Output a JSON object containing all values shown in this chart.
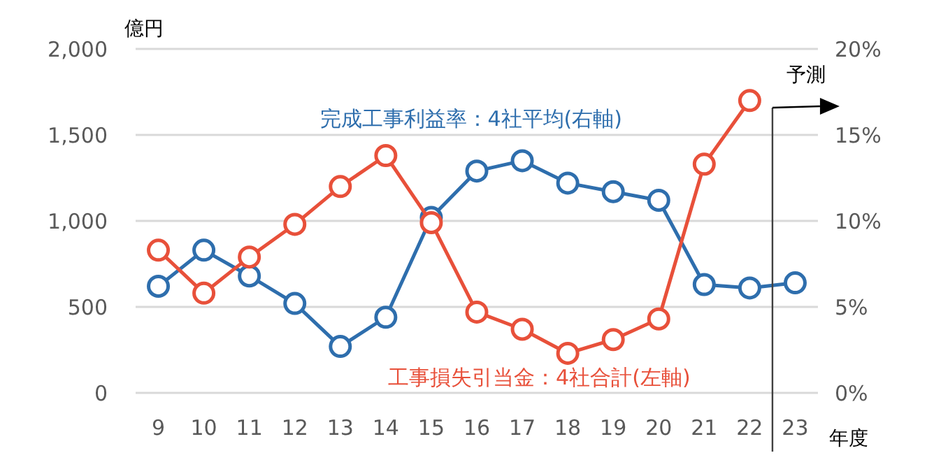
{
  "chart_data": {
    "type": "line",
    "xlabel": "年度",
    "ylabel": "億円",
    "x": [
      9,
      10,
      11,
      12,
      13,
      14,
      15,
      16,
      17,
      18,
      19,
      20,
      21,
      22,
      23
    ],
    "xlim": [
      8.5,
      23.5
    ],
    "xticks": [
      9,
      10,
      11,
      12,
      13,
      14,
      15,
      16,
      17,
      18,
      19,
      20,
      21,
      22,
      23
    ],
    "ylim": [
      0,
      2000
    ],
    "yticks": [
      {
        "value": 0,
        "label": "0"
      },
      {
        "value": 500,
        "label": "500"
      },
      {
        "value": 1000,
        "label": "1,000"
      },
      {
        "value": 1500,
        "label": "1,500"
      },
      {
        "value": 2000,
        "label": "2,000"
      }
    ],
    "y2lim": [
      0,
      20
    ],
    "y2ticks": [
      {
        "value": 0,
        "label": "0%"
      },
      {
        "value": 5,
        "label": "5%"
      },
      {
        "value": 10,
        "label": "10%"
      },
      {
        "value": 15,
        "label": "15%"
      },
      {
        "value": 20,
        "label": "20%"
      }
    ],
    "series": [
      {
        "name": "工事損失引当金：4社合計(左軸)",
        "color": "#e8503a",
        "values": [
          830,
          580,
          790,
          980,
          1200,
          1380,
          990,
          470,
          370,
          230,
          310,
          430,
          1330,
          1700,
          null
        ]
      },
      {
        "name": "完成工事利益率：4社平均(右軸)",
        "color": "#2e6ead",
        "axis": "y2",
        "values": [
          6.2,
          8.3,
          6.8,
          5.2,
          2.7,
          4.4,
          10.2,
          12.9,
          13.5,
          12.2,
          11.7,
          11.2,
          6.3,
          6.1,
          6.4
        ]
      }
    ],
    "ref_lines": [
      {
        "axis": "x",
        "value": 22.5,
        "label": "予測",
        "color": "#404040"
      }
    ],
    "grid": "y",
    "legend": false,
    "marker": "circle",
    "line_style": "solid"
  }
}
